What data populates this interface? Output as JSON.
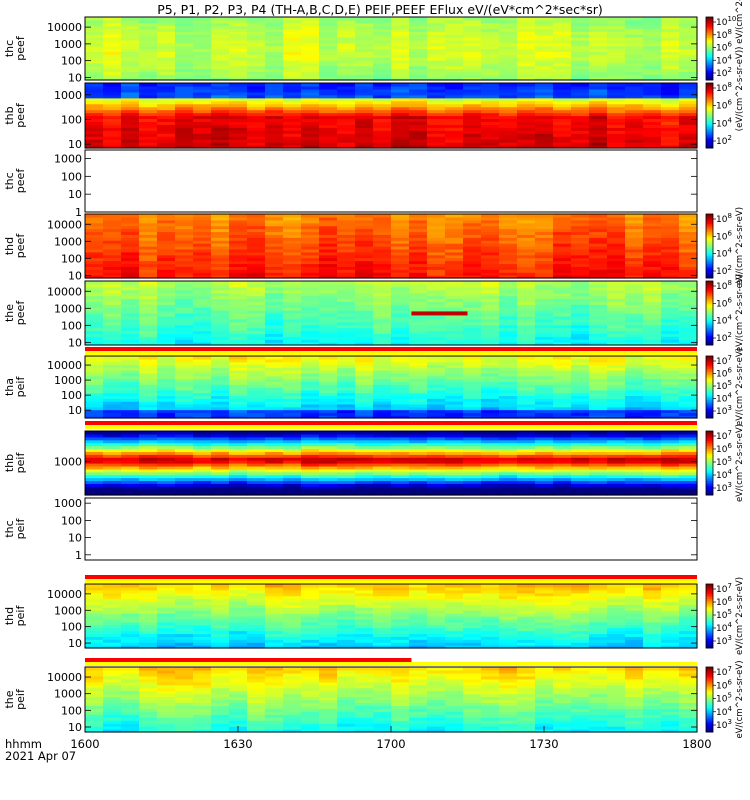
{
  "title": "P5, P1, P2, P3, P4 (TH-A,B,C,D,E) PEIF,PEEF EFlux eV/(eV*cm^2*sec*sr)",
  "xaxis": {
    "label_line1": "hhmm",
    "label_line2": "2021 Apr 07",
    "range": [
      1600,
      1800
    ],
    "ticks": [
      "1600",
      "1630",
      "1700",
      "1730",
      "1800"
    ]
  },
  "chart_data": [
    {
      "type": "heatmap",
      "name": "thc peef",
      "label": [
        "thc",
        "peef"
      ],
      "ylim": [
        7,
        40000
      ],
      "yscale": "log",
      "yticks": [
        "10",
        "100",
        "1000",
        "10000"
      ],
      "filled": true,
      "colorbar_ticks": [
        "10^10",
        "10^8",
        "10^6",
        "10^4",
        "10^2"
      ],
      "colorbar_label": "(eV/(cm^2-s-sr-eV)) eV/(cm^2-s-sr-eV)"
    },
    {
      "type": "heatmap",
      "name": "thb peef",
      "label": [
        "thb",
        "peef"
      ],
      "ylim": [
        7,
        3000
      ],
      "yscale": "log",
      "yticks": [
        "10",
        "100",
        "1000"
      ],
      "filled": true,
      "colorbar_ticks": [
        "10^8",
        "10^6",
        "10^4",
        "10^2"
      ],
      "colorbar_label": ""
    },
    {
      "type": "heatmap",
      "name": "thc peef (empty)",
      "label": [
        "thc",
        "peef"
      ],
      "ylim": [
        1,
        3000
      ],
      "yscale": "log",
      "yticks": [
        "1",
        "10",
        "100",
        "1000"
      ],
      "filled": false,
      "colorbar_ticks": [],
      "colorbar_label": ""
    },
    {
      "type": "heatmap",
      "name": "thd peef",
      "label": [
        "thd",
        "peef"
      ],
      "ylim": [
        7,
        40000
      ],
      "yscale": "log",
      "yticks": [
        "10",
        "100",
        "1000",
        "10000"
      ],
      "filled": true,
      "colorbar_ticks": [
        "10^8",
        "10^6",
        "10^4",
        "10^2"
      ],
      "colorbar_label": "eV/(cm^2-s-sr-eV)"
    },
    {
      "type": "heatmap",
      "name": "the peef",
      "label": [
        "the",
        "peef"
      ],
      "ylim": [
        7,
        40000
      ],
      "yscale": "log",
      "yticks": [
        "10",
        "100",
        "1000",
        "10000"
      ],
      "filled": true,
      "colorbar_ticks": [
        "10^8",
        "10^6",
        "10^4",
        "10^2"
      ],
      "colorbar_label": "eV/(cm^2-s-sr-eV)"
    },
    {
      "type": "heatmap",
      "name": "tha peif",
      "label": [
        "tha",
        "peif"
      ],
      "ylim": [
        3,
        40000
      ],
      "yscale": "log",
      "yticks": [
        "10",
        "100",
        "1000",
        "10000"
      ],
      "filled": true,
      "colorbar_ticks": [
        "10^7",
        "10^6",
        "10^5",
        "10^4",
        "10^3"
      ],
      "colorbar_label": "eV/(cm^2-s-sr-eV)"
    },
    {
      "type": "heatmap",
      "name": "thb peif",
      "label": [
        "thb",
        "peif"
      ],
      "ylim": [
        100,
        8000
      ],
      "yscale": "log",
      "yticks": [
        "1000"
      ],
      "filled": true,
      "colorbar_ticks": [
        "10^7",
        "10^6",
        "10^5",
        "10^4",
        "10^3"
      ],
      "colorbar_label": "eV/(cm^2-s-sr-eV)"
    },
    {
      "type": "heatmap",
      "name": "thc peif",
      "label": [
        "thc",
        "peif"
      ],
      "ylim": [
        0.5,
        2000
      ],
      "yscale": "log",
      "yticks": [
        "1",
        "10",
        "100",
        "1000"
      ],
      "filled": false,
      "colorbar_ticks": [],
      "colorbar_label": "eV/(cm^2-s-sr-eV)"
    },
    {
      "type": "heatmap",
      "name": "thd peif",
      "label": [
        "thd",
        "peif"
      ],
      "ylim": [
        5,
        40000
      ],
      "yscale": "log",
      "yticks": [
        "10",
        "100",
        "1000",
        "10000"
      ],
      "filled": true,
      "colorbar_ticks": [
        "10^7",
        "10^6",
        "10^5",
        "10^4",
        "10^3"
      ],
      "colorbar_label": "eV/(cm^2-s-sr-eV)"
    },
    {
      "type": "heatmap",
      "name": "the peif",
      "label": [
        "the",
        "peif"
      ],
      "ylim": [
        5,
        40000
      ],
      "yscale": "log",
      "yticks": [
        "10",
        "100",
        "1000",
        "10000"
      ],
      "filled": true,
      "colorbar_ticks": [
        "10^7",
        "10^6",
        "10^5",
        "10^4",
        "10^3"
      ],
      "colorbar_label": "eV/(cm^2-s-sr-eV)"
    }
  ],
  "flag_bars": [
    {
      "between": "the peef / tha peif",
      "colors": [
        "#ff0000",
        "#ffff00"
      ],
      "x_range": [
        1600,
        1800
      ]
    },
    {
      "between": "tha peif / thb peif",
      "colors": [
        "#ff0000",
        "#ffff00"
      ],
      "x_range": [
        1600,
        1800
      ]
    },
    {
      "between": "thc peif / thd peif",
      "colors": [
        "#ff0000",
        "#ffff00"
      ],
      "x_range": [
        1600,
        1800
      ]
    },
    {
      "between": "thd peif / the peif",
      "colors": [
        "#ff0000",
        "#ffff00"
      ],
      "x_range": [
        1600,
        1704
      ]
    }
  ],
  "annotation": {
    "panel": "the peef",
    "x_range": [
      1704,
      1715
    ],
    "y": 500,
    "color": "#c00000"
  },
  "colors": {
    "frame": "#000000",
    "background": "#ffffff"
  }
}
